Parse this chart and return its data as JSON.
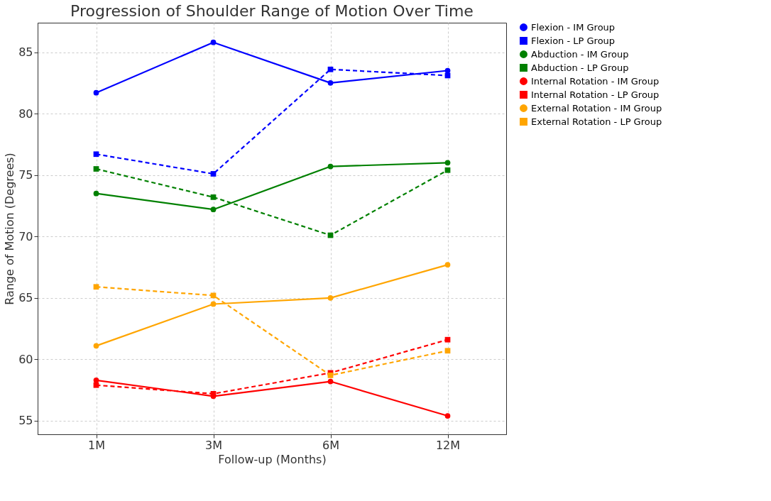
{
  "chart_data": {
    "type": "line",
    "title": "Progression of Shoulder Range of Motion Over Time",
    "xlabel": "Follow-up (Months)",
    "ylabel": "Range of Motion (Degrees)",
    "categories": [
      "1M",
      "3M",
      "6M",
      "12M"
    ],
    "ylim": [
      53.9,
      87.4
    ],
    "yticks": [
      55,
      60,
      65,
      70,
      75,
      80,
      85
    ],
    "grid": true,
    "legend": "right",
    "series": [
      {
        "name": "Flexion - IM Group",
        "color": "#0000ff",
        "marker": "circle",
        "line_style": "solid",
        "values": [
          81.7,
          85.8,
          82.5,
          83.5
        ]
      },
      {
        "name": "Flexion - LP Group",
        "color": "#0000ff",
        "marker": "square",
        "line_style": "dashed",
        "values": [
          76.7,
          75.1,
          83.6,
          83.1
        ]
      },
      {
        "name": "Abduction - IM Group",
        "color": "#008000",
        "marker": "circle",
        "line_style": "solid",
        "values": [
          73.5,
          72.2,
          75.7,
          76.0
        ]
      },
      {
        "name": "Abduction - LP Group",
        "color": "#008000",
        "marker": "square",
        "line_style": "dashed",
        "values": [
          75.5,
          73.2,
          70.1,
          75.4
        ]
      },
      {
        "name": "Internal Rotation - IM Group",
        "color": "#ff0000",
        "marker": "circle",
        "line_style": "solid",
        "values": [
          58.3,
          57.0,
          58.2,
          55.4
        ]
      },
      {
        "name": "Internal Rotation - LP Group",
        "color": "#ff0000",
        "marker": "square",
        "line_style": "dashed",
        "values": [
          57.9,
          57.2,
          58.9,
          61.6
        ]
      },
      {
        "name": "External Rotation - IM Group",
        "color": "#ffa500",
        "marker": "circle",
        "line_style": "solid",
        "values": [
          61.1,
          64.5,
          65.0,
          67.7
        ]
      },
      {
        "name": "External Rotation - LP Group",
        "color": "#ffa500",
        "marker": "square",
        "line_style": "dashed",
        "values": [
          65.9,
          65.2,
          58.7,
          60.7
        ]
      }
    ]
  }
}
